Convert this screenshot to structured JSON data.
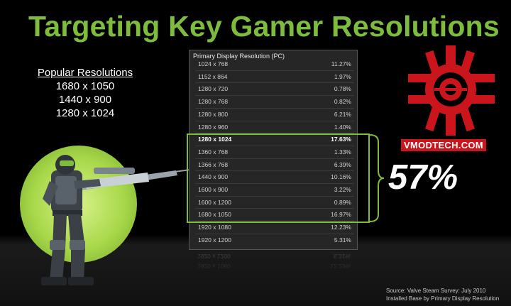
{
  "slide": {
    "title": "Targeting Key Gamer Resolutions",
    "popular_header": "Popular Resolutions",
    "popular_items": [
      "1680 x 1050",
      "1440 x 900",
      "1280 x 1024"
    ],
    "highlight_total": "57%",
    "logo_text": "VMODTECH.COM",
    "source_line1": "Source: Valve Steam Survey:  July 2010",
    "source_line2": "Installed Base by Primary Display Resolution"
  },
  "chart_data": {
    "type": "table",
    "title": "Primary Display Resolution (PC)",
    "rows": [
      {
        "resolution": "1024 x 768",
        "share": "11.27%"
      },
      {
        "resolution": "1152 x 864",
        "share": "1.97%"
      },
      {
        "resolution": "1280 x 720",
        "share": "0.78%"
      },
      {
        "resolution": "1280 x 768",
        "share": "0.82%"
      },
      {
        "resolution": "1280 x 800",
        "share": "6.21%"
      },
      {
        "resolution": "1280 x 960",
        "share": "1.40%"
      },
      {
        "resolution": "1280 x 1024",
        "share": "17.63%",
        "bold": true
      },
      {
        "resolution": "1360 x 768",
        "share": "1.33%"
      },
      {
        "resolution": "1366 x 768",
        "share": "6.39%"
      },
      {
        "resolution": "1440 x 900",
        "share": "10.16%"
      },
      {
        "resolution": "1600 x 900",
        "share": "3.22%"
      },
      {
        "resolution": "1600 x 1200",
        "share": "0.89%"
      },
      {
        "resolution": "1680 x 1050",
        "share": "16.97%"
      },
      {
        "resolution": "1920 x 1080",
        "share": "12.23%"
      },
      {
        "resolution": "1920 x 1200",
        "share": "5.31%"
      }
    ],
    "highlighted_range": [
      "1280 x 1024",
      "1680 x 1050"
    ],
    "highlight_color": "#7ebc3d"
  },
  "colors": {
    "title": "#7ebc3d",
    "accent_red": "#c9151b",
    "background": "#000000"
  }
}
